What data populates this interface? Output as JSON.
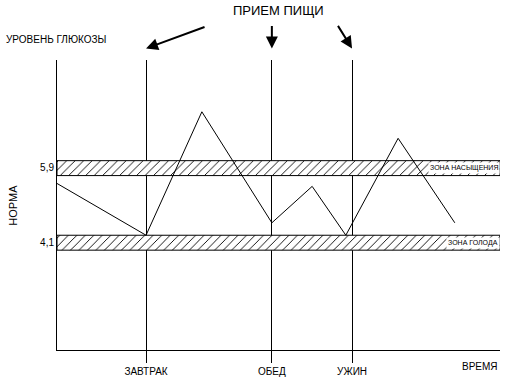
{
  "chart_data": {
    "type": "line",
    "y_label": "УРОВЕНЬ ГЛЮКОЗЫ",
    "x_label": "ВРЕМЯ",
    "annotations": [
      {
        "text": "ПРИЕМ ПИЩИ"
      },
      {
        "text": "НОРМА"
      }
    ],
    "x": [
      0,
      20.1,
      32.7,
      48.5,
      57.6,
      65.2,
      77,
      89.8
    ],
    "values": [
      5.52,
      4.27,
      7.25,
      4.57,
      5.45,
      4.27,
      6.61,
      4.57
    ],
    "color": "#000000",
    "xlim": [
      0,
      100
    ],
    "xticks": [
      {
        "value": 20.1,
        "label": "ЗАВТРАК"
      },
      {
        "value": 48.5,
        "label": "ОБЕД"
      },
      {
        "value": 66.6,
        "label": "УЖИН"
      }
    ],
    "ylim": [
      1.5,
      8.5
    ],
    "yticks": [
      {
        "value": 4.1,
        "label": "4,1"
      },
      {
        "value": 5.9,
        "label": "5,9"
      }
    ],
    "grid": "x",
    "zones": [
      {
        "label": "ЗОНА НАСЫЩЕНИЯ",
        "from": 5.71,
        "to": 6.07
      },
      {
        "label": "ЗОНА ГОЛОДА",
        "from": 3.91,
        "to": 4.27
      }
    ]
  }
}
